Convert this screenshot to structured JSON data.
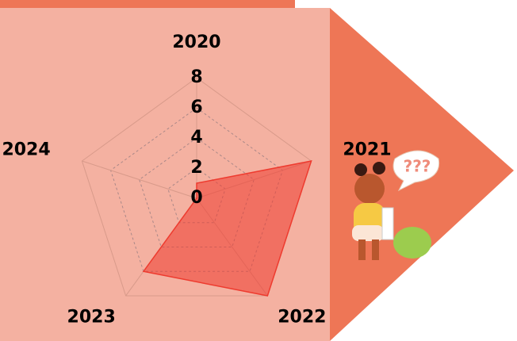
{
  "chart_data": {
    "type": "radar",
    "categories": [
      "2020",
      "2021",
      "2022",
      "2023",
      "2024"
    ],
    "values": [
      1,
      8,
      8,
      6,
      0
    ],
    "color": "#ee3b2f",
    "rlim": [
      0,
      8
    ],
    "rticks": [
      0,
      2,
      4,
      6,
      8
    ],
    "grid": true
  },
  "illustration_text": "???"
}
